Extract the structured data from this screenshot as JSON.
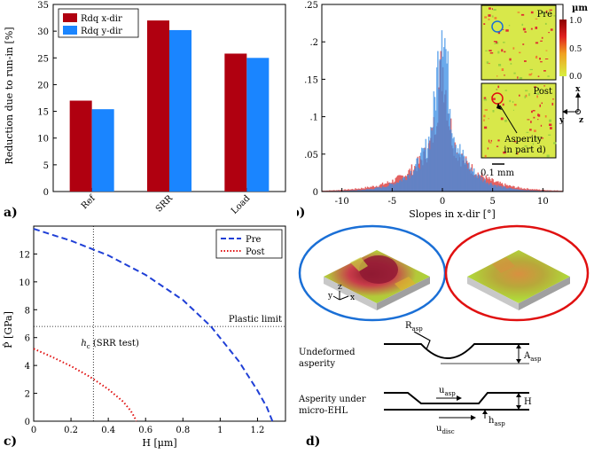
{
  "panels": {
    "a": "a)",
    "b": "b)",
    "c": "c)",
    "d": "d)"
  },
  "chart_data": [
    {
      "id": "a",
      "type": "bar",
      "categories": [
        "Ref",
        "SRR",
        "Load"
      ],
      "series": [
        {
          "name": "Rdq x-dir",
          "color": "#b00010",
          "values": [
            17.0,
            32.0,
            25.8
          ]
        },
        {
          "name": "Rdq y-dir",
          "color": "#1a85ff",
          "values": [
            15.4,
            30.2,
            25.0
          ]
        }
      ],
      "ylabel": "Reduction due to run-in [%]",
      "ylim": [
        0,
        35
      ],
      "yticks": [
        0,
        5,
        10,
        15,
        20,
        25,
        30,
        35
      ],
      "legend": "top-left"
    },
    {
      "id": "b",
      "type": "histogram",
      "xlabel": "Slopes in x-dir [°]",
      "xlim": [
        -12,
        12
      ],
      "xticks": [
        -10,
        -5,
        0,
        5,
        10
      ],
      "ylim": [
        0,
        0.25
      ],
      "yticks": [
        0,
        0.05,
        0.1,
        0.15,
        0.2,
        0.25
      ],
      "ytick_labels": [
        "0",
        ".05",
        ".1",
        ".15",
        ".2",
        ".25"
      ],
      "series": [
        {
          "name": "Pre",
          "color": "#e05050",
          "peak": 0.17,
          "width": 2.6
        },
        {
          "name": "Post",
          "color": "#3a8ee6",
          "peak": 0.245,
          "width": 1.9
        }
      ],
      "inset": {
        "labels": [
          "Pre",
          "Post"
        ],
        "annotation": "Asperity in part d)",
        "scale_label": "0.1 mm",
        "colorbar_unit": "µm",
        "colorbar_ticks": [
          "1.0",
          "0.5",
          "0.0"
        ],
        "axes": [
          "x",
          "y",
          "z"
        ]
      }
    },
    {
      "id": "c",
      "type": "line",
      "xlabel": "H [µm]",
      "ylabel": "P̂ [GPa]",
      "xlim": [
        0,
        1.35
      ],
      "ylim": [
        0,
        14
      ],
      "xticks": [
        0,
        0.2,
        0.4,
        0.6,
        0.8,
        1,
        1.2
      ],
      "xtick_labels": [
        "0",
        "0.2",
        "0.4",
        "0.6",
        "0.8",
        "1",
        "1.2"
      ],
      "yticks": [
        0,
        2,
        4,
        6,
        8,
        10,
        12
      ],
      "series": [
        {
          "name": "Pre",
          "style": "dashed",
          "color": "#1f3fd6",
          "x": [
            0,
            0.2,
            0.4,
            0.6,
            0.8,
            0.95,
            1.1,
            1.2,
            1.25,
            1.28
          ],
          "y": [
            13.8,
            12.95,
            11.9,
            10.5,
            8.7,
            6.8,
            4.3,
            2.2,
            1.0,
            0
          ]
        },
        {
          "name": "Post",
          "style": "dotted",
          "color": "#e01010",
          "x": [
            0,
            0.1,
            0.2,
            0.3,
            0.4,
            0.48,
            0.52,
            0.54,
            0.55
          ],
          "y": [
            5.2,
            4.6,
            3.95,
            3.2,
            2.3,
            1.4,
            0.75,
            0.3,
            0
          ]
        }
      ],
      "annotations": {
        "plastic_limit_label": "Plastic limit",
        "plastic_limit_y": 6.8,
        "hc_label": "h",
        "hc_sub": "c",
        "hc_suffix": " (SRR test)",
        "hc_x": 0.32
      },
      "legend": "top-right"
    }
  ],
  "schematic": {
    "undeformed_label_1": "Undeformed",
    "undeformed_label_2": "asperity",
    "under_label_1": "Asperity under",
    "under_label_2": "micro-EHL",
    "r_asp": "R",
    "r_sub": "asp",
    "a_asp": "A",
    "a_sub": "asp",
    "u_asp": "u",
    "u_asp_sub": "asp",
    "h_label": "H",
    "h_asp": "h",
    "h_asp_sub": "asp",
    "u_disc": "u",
    "u_disc_sub": "disc",
    "axes": [
      "y",
      "z",
      "x"
    ]
  }
}
